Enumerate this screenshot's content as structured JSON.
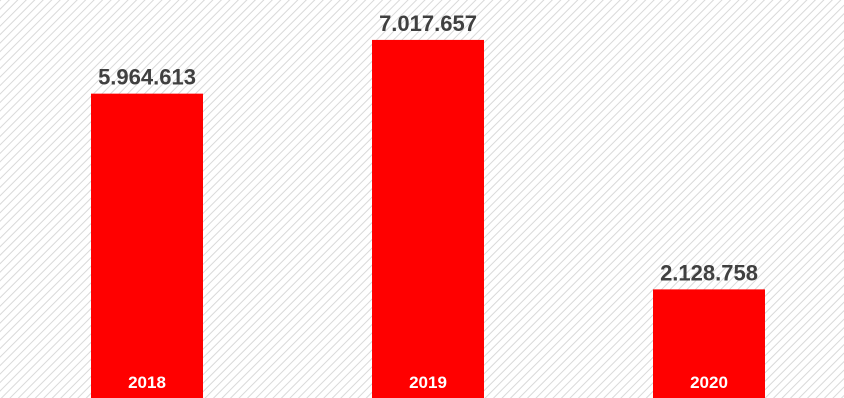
{
  "chart_data": {
    "type": "bar",
    "categories": [
      "2018",
      "2019",
      "2020"
    ],
    "values": [
      5964613,
      7017657,
      2128758
    ],
    "value_labels": [
      "5.964.613",
      "7.017.657",
      "2.128.758"
    ],
    "title": "",
    "xlabel": "",
    "ylabel": "",
    "ylim": [
      0,
      7800000
    ],
    "grid": false,
    "legend": "none",
    "colors": {
      "bar": "#ff0000",
      "value_text": "#404040",
      "category_text": "#ffffff",
      "background_hatch": "#d9d9d9"
    }
  }
}
